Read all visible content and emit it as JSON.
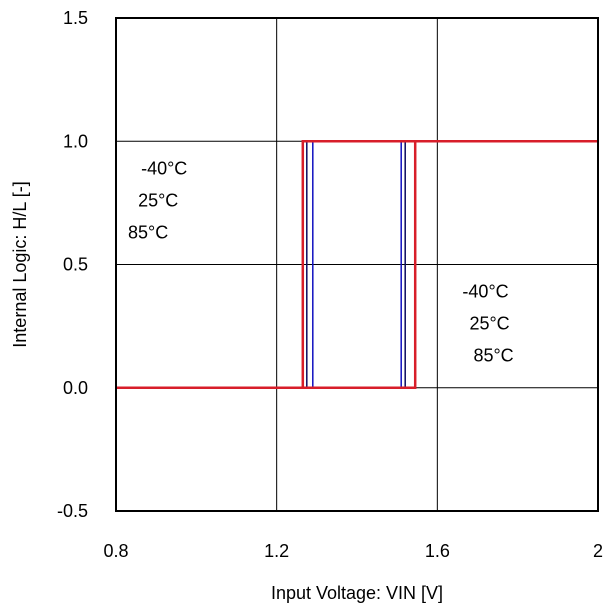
{
  "chart_data": {
    "type": "line",
    "xlabel": "Input Voltage: VIN [V]",
    "ylabel": "Internal Logic: H/L [-]",
    "xlim": [
      0.8,
      2.0
    ],
    "ylim": [
      -0.5,
      1.5
    ],
    "x_ticks": [
      0.8,
      1.2,
      1.6,
      2.0
    ],
    "x_tick_labels": [
      "0.8",
      "1.2",
      "1.6",
      "2"
    ],
    "y_ticks": [
      -0.5,
      0.0,
      0.5,
      1.0,
      1.5
    ],
    "y_tick_labels": [
      "-0.5",
      "0.0",
      "0.5",
      "1.0",
      "1.5"
    ],
    "grid": true,
    "series": [
      {
        "color": "#1010c0",
        "width": 1.5,
        "x": [
          0.8,
          1.51,
          1.51,
          2.0,
          1.29,
          1.29,
          0.8
        ],
        "y": [
          0.0,
          0.0,
          1.0,
          1.0,
          1.0,
          0.0,
          0.0
        ]
      },
      {
        "color": "#0a0a60",
        "width": 1.5,
        "x": [
          0.8,
          1.52,
          1.52,
          2.0,
          1.275,
          1.275,
          0.8
        ],
        "y": [
          0.0,
          0.0,
          1.0,
          1.0,
          1.0,
          0.0,
          0.0
        ]
      },
      {
        "color": "#d81e2a",
        "width": 2.5,
        "x": [
          0.8,
          1.545,
          1.545,
          2.0,
          1.265,
          1.265,
          0.8
        ],
        "y": [
          0.0,
          0.0,
          1.0,
          1.0,
          1.0,
          0.0,
          0.0
        ]
      }
    ],
    "annotations": [
      {
        "text": "-40°C",
        "x": 0.92,
        "y": 0.89
      },
      {
        "text": "25°C",
        "x": 0.905,
        "y": 0.76
      },
      {
        "text": "85°C",
        "x": 0.88,
        "y": 0.63
      },
      {
        "text": "-40°C",
        "x": 1.72,
        "y": 0.39
      },
      {
        "text": "25°C",
        "x": 1.73,
        "y": 0.26
      },
      {
        "text": "85°C",
        "x": 1.74,
        "y": 0.13
      }
    ]
  }
}
